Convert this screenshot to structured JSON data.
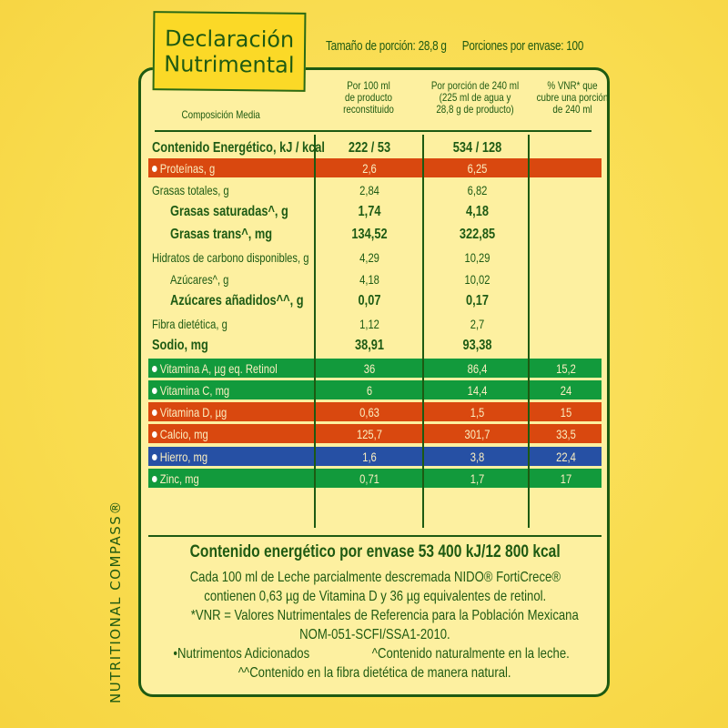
{
  "title": {
    "line1": "Declaración",
    "line2": "Nutrimental"
  },
  "serving": {
    "size": "Tamaño de porción: 28,8 g",
    "per_container": "Porciones por envase: 100"
  },
  "headers": {
    "composition": "Composición Media",
    "col1": [
      "Por 100 ml",
      "de producto",
      "reconstituido"
    ],
    "col2": [
      "Por porción de 240 ml",
      "(225 ml de agua y",
      "28,8 g de producto)"
    ],
    "col3": [
      "% VNR* que",
      "cubre una porción",
      "de 240 ml"
    ]
  },
  "rows": [
    {
      "label": "Contenido Energético, kJ / kcal",
      "per100": "222 / 53",
      "per240": "534 / 128",
      "vnr": "",
      "style": "bold",
      "bg": ""
    },
    {
      "label": "Proteínas, g",
      "per100": "2,6",
      "per240": "6,25",
      "vnr": "",
      "style": "band",
      "bg": "orange"
    },
    {
      "label": "Grasas totales, g",
      "per100": "2,84",
      "per240": "6,82",
      "vnr": "",
      "style": "norm",
      "bg": ""
    },
    {
      "label": "Grasas saturadas^, g",
      "per100": "1,74",
      "per240": "4,18",
      "vnr": "",
      "style": "bold-indent",
      "bg": ""
    },
    {
      "label": "Grasas trans^, mg",
      "per100": "134,52",
      "per240": "322,85",
      "vnr": "",
      "style": "bold-indent",
      "bg": ""
    },
    {
      "label": "Hidratos de carbono disponibles, g",
      "per100": "4,29",
      "per240": "10,29",
      "vnr": "",
      "style": "norm",
      "bg": ""
    },
    {
      "label": "Azúcares^, g",
      "per100": "4,18",
      "per240": "10,02",
      "vnr": "",
      "style": "norm-indent",
      "bg": ""
    },
    {
      "label": "Azúcares añadidos^^, g",
      "per100": "0,07",
      "per240": "0,17",
      "vnr": "",
      "style": "bold-indent",
      "bg": ""
    },
    {
      "label": "Fibra dietética, g",
      "per100": "1,12",
      "per240": "2,7",
      "vnr": "",
      "style": "norm",
      "bg": ""
    },
    {
      "label": "Sodio, mg",
      "per100": "38,91",
      "per240": "93,38",
      "vnr": "",
      "style": "bold",
      "bg": ""
    },
    {
      "label": "Vitamina A, µg eq. Retinol",
      "per100": "36",
      "per240": "86,4",
      "vnr": "15,2",
      "style": "band",
      "bg": "green"
    },
    {
      "label": "Vitamina C, mg",
      "per100": "6",
      "per240": "14,4",
      "vnr": "24",
      "style": "band",
      "bg": "green"
    },
    {
      "label": "Vitamina D, µg",
      "per100": "0,63",
      "per240": "1,5",
      "vnr": "15",
      "style": "band",
      "bg": "orange"
    },
    {
      "label": "Calcio, mg",
      "per100": "125,7",
      "per240": "301,7",
      "vnr": "33,5",
      "style": "band",
      "bg": "orange"
    },
    {
      "label": "Hierro, mg",
      "per100": "1,6",
      "per240": "3,8",
      "vnr": "22,4",
      "style": "band",
      "bg": "blue"
    },
    {
      "label": "Zinc, mg",
      "per100": "0,71",
      "per240": "1,7",
      "vnr": "17",
      "style": "band",
      "bg": "green"
    }
  ],
  "footer": {
    "energy_total": "Contenido energético por envase 53 400 kJ/12 800 kcal",
    "note1": "Cada 100 ml de Leche parcialmente descremada NIDO® FortiCrece®",
    "note2": "contienen 0,63 µg de Vitamina D y 36 µg equivalentes de retinol.",
    "note3": "*VNR = Valores Nutrimentales de Referencia para la Población Mexicana",
    "note4": "NOM-051-SCFI/SSA1-2010.",
    "legend_added": "•Nutrimentos Adicionados",
    "legend_natural": "^Contenido naturalmente en la leche.",
    "legend_fiber": "^^Contenido en la fibra dietética de manera natural."
  },
  "side_label": "NUTRITIONAL COMPASS®",
  "colors": {
    "dark_green": "#1d5a12",
    "orange": "#d9480f",
    "green": "#129a3c",
    "blue": "#2650a4",
    "panel": "#fdf0a0",
    "title_yellow": "#fbd927"
  }
}
